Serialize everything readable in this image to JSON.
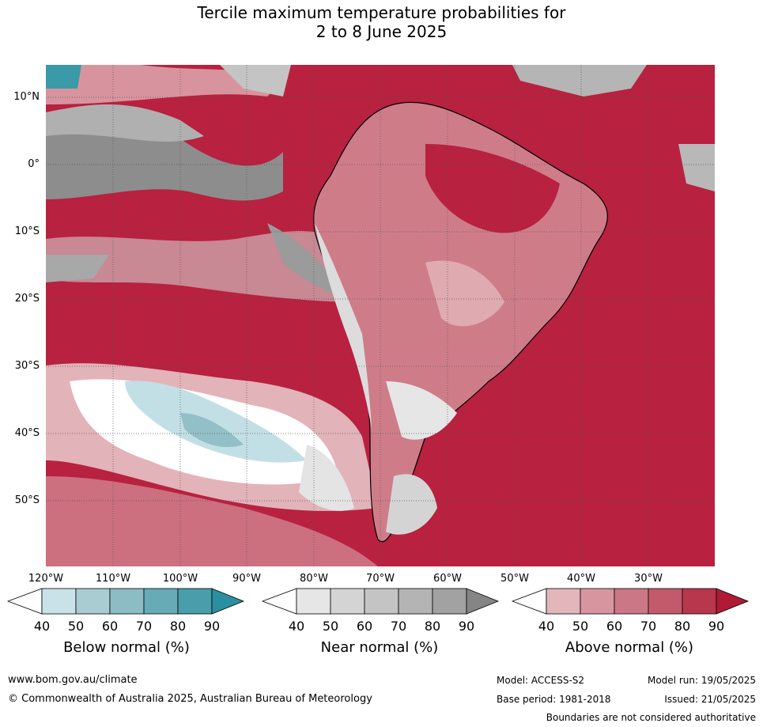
{
  "title": {
    "line1": "Tercile maximum temperature probabilities for",
    "line2": "2 to 8 June 2025"
  },
  "map": {
    "lat_labels": [
      "10°N",
      "0°",
      "10°S",
      "20°S",
      "30°S",
      "40°S",
      "50°S"
    ],
    "lon_labels": [
      "120°W",
      "110°W",
      "100°W",
      "90°W",
      "80°W",
      "70°W",
      "60°W",
      "50°W",
      "40°W",
      "30°W"
    ]
  },
  "legends": [
    {
      "title": "Below normal (%)",
      "ticks": [
        "40",
        "50",
        "60",
        "70",
        "80",
        "90"
      ],
      "colors": [
        "#ffffff",
        "#c9e2e8",
        "#a9ccd3",
        "#8cbcc4",
        "#67abb7",
        "#4a9eac",
        "#2a8fa0"
      ]
    },
    {
      "title": "Near normal (%)",
      "ticks": [
        "40",
        "50",
        "60",
        "70",
        "80",
        "90"
      ],
      "colors": [
        "#ffffff",
        "#e6e6e6",
        "#d4d4d4",
        "#c4c4c4",
        "#b4b4b4",
        "#a2a2a2",
        "#858585"
      ]
    },
    {
      "title": "Above normal (%)",
      "ticks": [
        "40",
        "50",
        "60",
        "70",
        "80",
        "90"
      ],
      "colors": [
        "#ffffff",
        "#e3b6bb",
        "#d7969f",
        "#cc7785",
        "#c35a6b",
        "#b8374c",
        "#b01a37"
      ]
    }
  ],
  "footer": {
    "website": "www.bom.gov.au/climate",
    "copyright": "© Commonwealth of Australia 2025, Australian Bureau of Meteorology",
    "model": "Model: ACCESS-S2",
    "base_period": "Base period: 1981-2018",
    "model_run": "Model run: 19/05/2025",
    "issued": "Issued: 21/05/2025",
    "boundaries": "Boundaries are not considered authoritative"
  }
}
